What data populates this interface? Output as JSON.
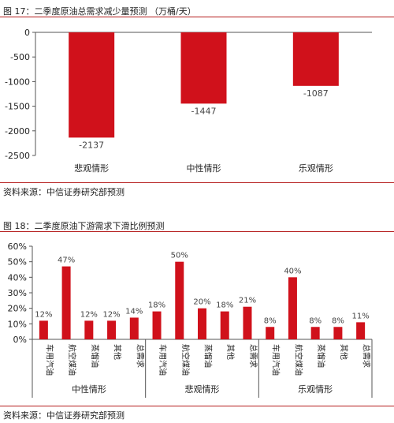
{
  "figure1": {
    "title": "图 17：二季度原油总需求减少量预测 （万桶/天）",
    "source": "资料来源：中信证券研究部预测"
  },
  "figure2": {
    "title": "图 18：二季度原油下游需求下滑比例预测",
    "source": "资料来源：中信证券研究部预测"
  },
  "colors": {
    "bar": "#d0111b",
    "rule": "#b51d1d",
    "axis": "#555555",
    "text": "#222222"
  },
  "chart_data": [
    {
      "type": "bar",
      "title": "图 17：二季度原油总需求减少量预测 （万桶/天）",
      "categories": [
        "悲观情形",
        "中性情形",
        "乐观情形"
      ],
      "values": [
        -2137,
        -1447,
        -1087
      ],
      "data_labels": [
        "-2137",
        "-1447",
        "-1087"
      ],
      "yticks": [
        "0",
        "-500",
        "-1000",
        "-1500",
        "-2000",
        "-2500"
      ],
      "ylim": [
        -2500,
        0
      ],
      "grid": false,
      "legend": "none"
    },
    {
      "type": "bar",
      "title": "图 18：二季度原油下游需求下滑比例预测",
      "groups": [
        {
          "name": "中性情形",
          "categories": [
            "车用汽油",
            "航空煤油",
            "蒸馏油",
            "其他",
            "总需求"
          ],
          "values": [
            12,
            47,
            12,
            12,
            14
          ],
          "data_labels": [
            "12%",
            "47%",
            "12%",
            "12%",
            "14%"
          ]
        },
        {
          "name": "悲观情形",
          "categories": [
            "车用汽油",
            "航空煤油",
            "蒸馏油",
            "其他",
            "总需求"
          ],
          "values": [
            18,
            50,
            20,
            18,
            21
          ],
          "data_labels": [
            "18%",
            "50%",
            "20%",
            "18%",
            "21%"
          ]
        },
        {
          "name": "乐观情形",
          "categories": [
            "车用汽油",
            "航空煤油",
            "蒸馏油",
            "其他",
            "总需求"
          ],
          "values": [
            8,
            40,
            8,
            8,
            11
          ],
          "data_labels": [
            "8%",
            "40%",
            "8%",
            "8%",
            "11%"
          ]
        }
      ],
      "yticks": [
        "0%",
        "10%",
        "20%",
        "30%",
        "40%",
        "50%",
        "60%"
      ],
      "ylim": [
        0,
        60
      ],
      "grid": false,
      "legend": "none"
    }
  ]
}
